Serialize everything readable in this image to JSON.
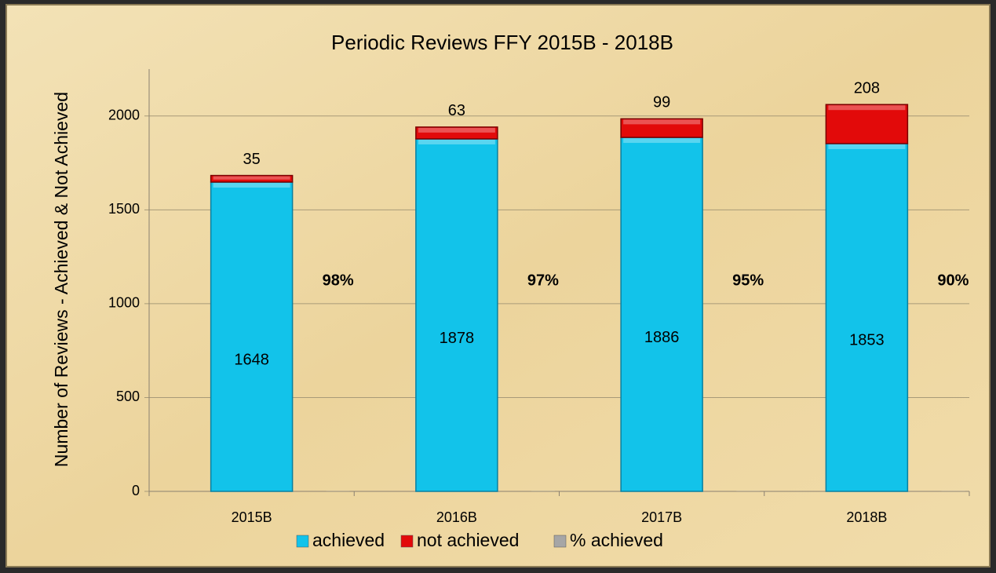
{
  "chart_data": {
    "type": "stacked_bar",
    "title": "Periodic Reviews FFY 2015B - 2018B",
    "y_label": "Number of Reviews - Achieved & Not Achieved",
    "categories": [
      "2015B",
      "2016B",
      "2017B",
      "2018B"
    ],
    "series": [
      {
        "name": "achieved",
        "color": "#12c3ea",
        "values": [
          1648,
          1878,
          1886,
          1853
        ]
      },
      {
        "name": "not achieved",
        "color": "#e20a0a",
        "values": [
          35,
          63,
          99,
          208
        ]
      },
      {
        "name": "% achieved",
        "color": "#a6a6a6",
        "values": [
          0.98,
          0.97,
          0.95,
          0.9
        ],
        "value_labels": [
          "98%",
          "97%",
          "95%",
          "90%"
        ]
      }
    ],
    "ylim": [
      0,
      2250
    ],
    "yticks": [
      0,
      500,
      1000,
      1500,
      2000
    ],
    "grid": true
  }
}
